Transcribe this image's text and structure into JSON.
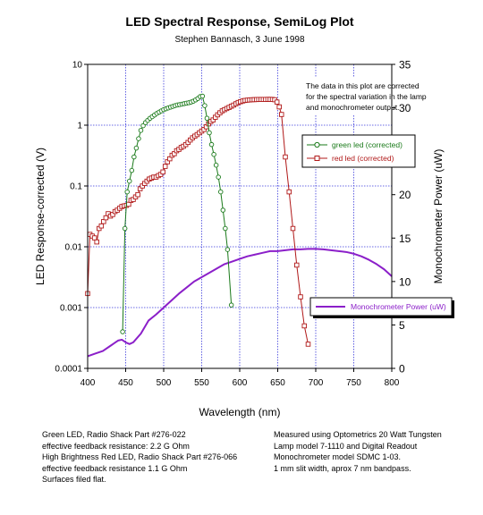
{
  "chart_data": {
    "type": "line",
    "title": "LED Spectral Response, SemiLog Plot",
    "subtitle": "Stephen Bannasch, 3 June 1998",
    "xlabel": "Wavelength (nm)",
    "ylabel": "LED Response-corrected (V)",
    "y2label": "Monochrometer Power (uW)",
    "xlim": [
      400,
      800
    ],
    "ylim": [
      0.0001,
      10
    ],
    "y2lim": [
      0,
      35
    ],
    "yscale": "log",
    "grid": true,
    "x_ticks": [
      "400",
      "450",
      "500",
      "550",
      "600",
      "650",
      "700",
      "750",
      "800"
    ],
    "y_ticks": [
      "0.0001",
      "0.001",
      "0.01",
      "0.1",
      "1",
      "10"
    ],
    "y2_ticks": [
      "0",
      "5",
      "10",
      "15",
      "20",
      "25",
      "30",
      "35"
    ],
    "annotation": [
      "The data in this plot are corrected",
      "for the spectral  variation in the lamp",
      "and monochrometer output."
    ],
    "legend_placement": "right",
    "series": [
      {
        "name": "green led (corrected)",
        "color": "#1a7a1a",
        "marker": "circle",
        "axis": "left",
        "x": [
          446,
          449,
          452,
          455,
          458,
          461,
          464,
          467,
          470,
          473,
          476,
          479,
          482,
          485,
          488,
          491,
          494,
          497,
          500,
          503,
          506,
          509,
          512,
          515,
          518,
          521,
          524,
          527,
          530,
          533,
          536,
          539,
          542,
          545,
          548,
          551,
          554,
          557,
          560,
          563,
          566,
          569,
          572,
          575,
          578,
          581,
          584,
          589
        ],
        "y": [
          0.0004,
          0.02,
          0.08,
          0.12,
          0.18,
          0.3,
          0.42,
          0.6,
          0.82,
          0.98,
          1.1,
          1.2,
          1.3,
          1.38,
          1.47,
          1.56,
          1.64,
          1.72,
          1.8,
          1.86,
          1.92,
          1.98,
          2.04,
          2.1,
          2.15,
          2.18,
          2.22,
          2.26,
          2.3,
          2.34,
          2.4,
          2.48,
          2.6,
          2.75,
          2.95,
          3.0,
          2.1,
          1.3,
          0.75,
          0.48,
          0.33,
          0.22,
          0.14,
          0.08,
          0.04,
          0.02,
          0.009,
          0.0011
        ]
      },
      {
        "name": "red led (corrected)",
        "color": "#b01818",
        "marker": "square",
        "axis": "left",
        "x": [
          400,
          403,
          406,
          409,
          412,
          415,
          418,
          421,
          424,
          427,
          430,
          433,
          436,
          439,
          442,
          445,
          448,
          451,
          454,
          457,
          460,
          463,
          466,
          469,
          472,
          475,
          478,
          481,
          484,
          487,
          490,
          493,
          496,
          499,
          502,
          505,
          508,
          511,
          514,
          517,
          520,
          523,
          526,
          529,
          532,
          535,
          538,
          541,
          544,
          547,
          550,
          553,
          556,
          559,
          562,
          565,
          568,
          571,
          574,
          577,
          580,
          583,
          586,
          589,
          592,
          595,
          598,
          601,
          604,
          607,
          610,
          613,
          616,
          619,
          622,
          625,
          628,
          631,
          634,
          637,
          640,
          643,
          646,
          649,
          652,
          655,
          660,
          665,
          670,
          675,
          680,
          685,
          690
        ],
        "y": [
          0.0017,
          0.016,
          0.015,
          0.014,
          0.012,
          0.02,
          0.022,
          0.026,
          0.03,
          0.035,
          0.032,
          0.034,
          0.038,
          0.04,
          0.043,
          0.046,
          0.047,
          0.048,
          0.05,
          0.058,
          0.06,
          0.066,
          0.072,
          0.09,
          0.1,
          0.11,
          0.12,
          0.13,
          0.135,
          0.14,
          0.14,
          0.148,
          0.155,
          0.17,
          0.21,
          0.25,
          0.28,
          0.32,
          0.34,
          0.38,
          0.4,
          0.43,
          0.45,
          0.48,
          0.52,
          0.57,
          0.62,
          0.66,
          0.7,
          0.75,
          0.8,
          0.85,
          0.94,
          1.05,
          1.15,
          1.22,
          1.35,
          1.48,
          1.6,
          1.72,
          1.8,
          1.88,
          1.96,
          2.05,
          2.14,
          2.25,
          2.36,
          2.43,
          2.5,
          2.55,
          2.58,
          2.6,
          2.62,
          2.63,
          2.64,
          2.65,
          2.65,
          2.65,
          2.65,
          2.66,
          2.66,
          2.65,
          2.62,
          2.4,
          2.0,
          1.5,
          0.3,
          0.08,
          0.02,
          0.005,
          0.0015,
          0.0005,
          0.00025
        ]
      },
      {
        "name": "Monochrometer Power (uW)",
        "color": "#8b1fc9",
        "marker": "none",
        "axis": "right",
        "x": [
          400,
          410,
          420,
          430,
          440,
          445,
          450,
          455,
          460,
          470,
          480,
          490,
          500,
          510,
          520,
          530,
          540,
          550,
          560,
          570,
          580,
          590,
          600,
          610,
          620,
          630,
          640,
          650,
          660,
          670,
          680,
          690,
          700,
          710,
          720,
          730,
          740,
          750,
          760,
          770,
          780,
          790,
          800
        ],
        "y": [
          1.4,
          1.7,
          2.0,
          2.6,
          3.2,
          3.3,
          3.0,
          2.8,
          3.0,
          4.0,
          5.5,
          6.2,
          7.0,
          7.8,
          8.6,
          9.3,
          10.0,
          10.5,
          11.0,
          11.5,
          12.0,
          12.3,
          12.6,
          12.9,
          13.1,
          13.3,
          13.5,
          13.5,
          13.6,
          13.7,
          13.7,
          13.75,
          13.75,
          13.7,
          13.6,
          13.5,
          13.4,
          13.2,
          12.9,
          12.5,
          12.0,
          11.4,
          10.6
        ]
      }
    ]
  },
  "notes_left": [
    "Green LED, Radio Shack Part #276-022",
    "effective feedback resistance: 2.2 G Ohm",
    "High Brightness Red LED, Radio Shack Part #276-066",
    "effective feedback resistance 1.1 G Ohm",
    "Surfaces filed flat."
  ],
  "notes_right": [
    "Measured using Optometrics 20 Watt Tungsten",
    "Lamp model 7-1110 and Digital Readout",
    "Monochrometer model SDMC 1-03.",
    "1 mm slit width, aprox 7 nm bandpass."
  ]
}
